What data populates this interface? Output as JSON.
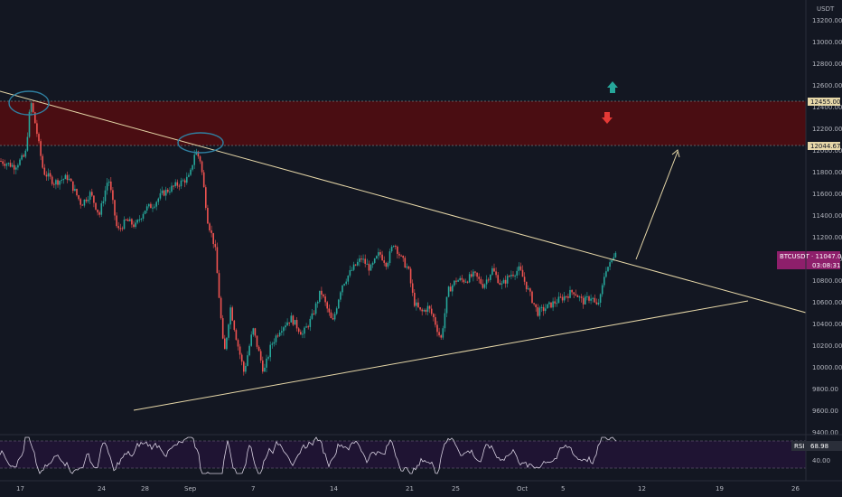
{
  "chart": {
    "currency": "USDT",
    "symbol_label": "BTCUSDT · 11047.00",
    "countdown": "03:08:31",
    "rsi_label": "RSI",
    "rsi_value": "68.98",
    "rsi_tick": "40.00",
    "upper_zone_label": "12455.00",
    "lower_zone_label": "12044.67",
    "colors": {
      "background": "#131722",
      "bull": "#26a69a",
      "bear": "#ef5350",
      "trendline": "#e6d7a8",
      "zone_fill": "#4a0d12",
      "symbol_badge": "#8e1f6b",
      "rsi_band": "#1f1433",
      "rsi_line": "#d6cfe0",
      "up_arrow": "#26a69a",
      "down_arrow": "#e53935"
    }
  },
  "chart_data": {
    "type": "candlestick",
    "price_axis_ticks": [
      "13200.00",
      "13000.00",
      "12800.00",
      "12600.00",
      "12400.00",
      "12200.00",
      "12000.00",
      "11800.00",
      "11600.00",
      "11400.00",
      "11200.00",
      "11000.00",
      "10800.00",
      "10600.00",
      "10400.00",
      "10200.00",
      "10000.00",
      "9800.00",
      "9600.00",
      "9400.00"
    ],
    "time_axis_labels": [
      "17",
      "24",
      "28",
      "Sep",
      "7",
      "14",
      "21",
      "25",
      "Oct",
      "5",
      "12",
      "19",
      "26"
    ],
    "resistance_zone": [
      12044.67,
      12455.0
    ],
    "current_price": 11047.0,
    "rsi_current": 68.98,
    "price_path": [
      [
        0,
        11900
      ],
      [
        16,
        11850
      ],
      [
        28,
        11950
      ],
      [
        34,
        12450
      ],
      [
        40,
        12200
      ],
      [
        48,
        11800
      ],
      [
        60,
        11700
      ],
      [
        75,
        11750
      ],
      [
        90,
        11500
      ],
      [
        100,
        11600
      ],
      [
        110,
        11400
      ],
      [
        120,
        11750
      ],
      [
        130,
        11250
      ],
      [
        140,
        11350
      ],
      [
        150,
        11300
      ],
      [
        160,
        11450
      ],
      [
        170,
        11500
      ],
      [
        180,
        11600
      ],
      [
        190,
        11650
      ],
      [
        200,
        11700
      ],
      [
        210,
        11750
      ],
      [
        216,
        12000
      ],
      [
        222,
        11900
      ],
      [
        230,
        11350
      ],
      [
        238,
        11100
      ],
      [
        242,
        10700
      ],
      [
        248,
        10100
      ],
      [
        255,
        10550
      ],
      [
        262,
        10250
      ],
      [
        270,
        9950
      ],
      [
        280,
        10350
      ],
      [
        292,
        9950
      ],
      [
        300,
        10200
      ],
      [
        310,
        10350
      ],
      [
        322,
        10450
      ],
      [
        335,
        10300
      ],
      [
        345,
        10450
      ],
      [
        355,
        10700
      ],
      [
        368,
        10400
      ],
      [
        378,
        10750
      ],
      [
        390,
        10900
      ],
      [
        400,
        11000
      ],
      [
        410,
        10900
      ],
      [
        420,
        11050
      ],
      [
        428,
        10950
      ],
      [
        436,
        11150
      ],
      [
        444,
        11000
      ],
      [
        452,
        10900
      ],
      [
        458,
        10600
      ],
      [
        466,
        10500
      ],
      [
        474,
        10550
      ],
      [
        480,
        10450
      ],
      [
        488,
        10250
      ],
      [
        496,
        10700
      ],
      [
        505,
        10800
      ],
      [
        515,
        10800
      ],
      [
        525,
        10850
      ],
      [
        535,
        10750
      ],
      [
        545,
        10900
      ],
      [
        555,
        10750
      ],
      [
        565,
        10850
      ],
      [
        575,
        10900
      ],
      [
        585,
        10700
      ],
      [
        595,
        10500
      ],
      [
        605,
        10550
      ],
      [
        615,
        10600
      ],
      [
        625,
        10650
      ],
      [
        635,
        10700
      ],
      [
        645,
        10600
      ],
      [
        655,
        10650
      ],
      [
        660,
        10550
      ],
      [
        665,
        10650
      ],
      [
        670,
        10900
      ],
      [
        676,
        10950
      ],
      [
        682,
        11100
      ]
    ]
  }
}
